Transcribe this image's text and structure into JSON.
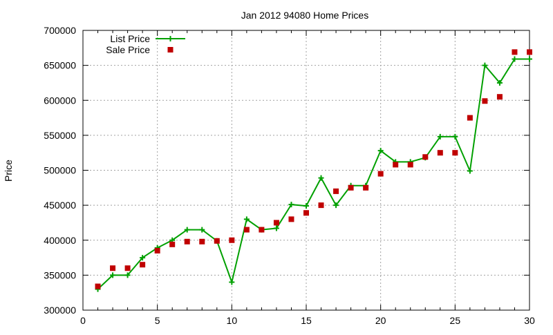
{
  "chart_data": {
    "type": "line",
    "title": "Jan 2012 94080 Home Prices",
    "xlabel": "",
    "ylabel": "Price",
    "xlim": [
      0,
      30
    ],
    "ylim": [
      300000,
      700000
    ],
    "x_ticks": [
      "0",
      "5",
      "10",
      "15",
      "20",
      "25",
      "30"
    ],
    "y_ticks": [
      "300000",
      "350000",
      "400000",
      "450000",
      "500000",
      "550000",
      "600000",
      "650000",
      "700000"
    ],
    "grid": true,
    "legend_position": "top-left",
    "series": [
      {
        "name": "List Price",
        "style": "line+cross",
        "color": "#00a000",
        "x": [
          1,
          2,
          3,
          4,
          5,
          6,
          7,
          8,
          9,
          10,
          11,
          12,
          13,
          14,
          15,
          16,
          17,
          18,
          19,
          20,
          21,
          22,
          23,
          24,
          25,
          26,
          27,
          28,
          29,
          30
        ],
        "values": [
          330000,
          350000,
          350000,
          375000,
          389000,
          400000,
          415000,
          415000,
          399000,
          340000,
          430000,
          415000,
          417000,
          451000,
          449000,
          489000,
          450000,
          478000,
          478000,
          528000,
          512000,
          512000,
          518000,
          548000,
          548000,
          499000,
          650000,
          625000,
          659000,
          659000
        ]
      },
      {
        "name": "Sale Price",
        "style": "square-points",
        "color": "#c00000",
        "x": [
          1,
          2,
          3,
          4,
          5,
          6,
          7,
          8,
          9,
          10,
          11,
          12,
          13,
          14,
          15,
          16,
          17,
          18,
          19,
          20,
          21,
          22,
          23,
          24,
          25,
          26,
          27,
          28,
          29,
          30
        ],
        "values": [
          334000,
          360000,
          360000,
          365000,
          385000,
          394000,
          398000,
          398000,
          399000,
          400000,
          415000,
          415000,
          425000,
          430000,
          439000,
          450000,
          470000,
          475000,
          475000,
          495000,
          508000,
          508000,
          519000,
          525000,
          525000,
          575000,
          599000,
          605000,
          669000,
          669000
        ]
      }
    ]
  }
}
